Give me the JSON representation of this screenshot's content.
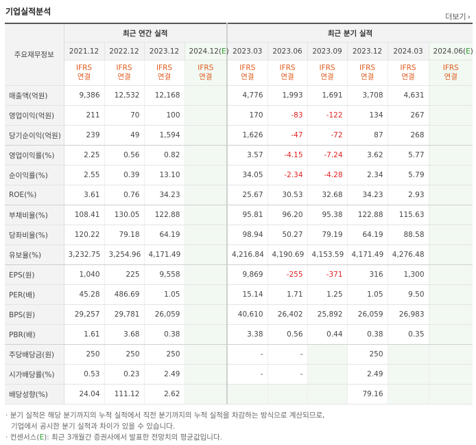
{
  "title": "기업실적분석",
  "more": "더보기",
  "more_arrow": "›",
  "header": {
    "label": "주요재무정보",
    "annual_group": "최근 연간 실적",
    "quarter_group": "최근 분기 실적",
    "periods": [
      "2021.12",
      "2022.12",
      "2023.12",
      "2024.12(E)",
      "2023.03",
      "2023.06",
      "2023.09",
      "2023.12",
      "2024.03",
      "2024.06(E)"
    ],
    "ifrs_top": "IFRS",
    "ifrs_bottom": "연결"
  },
  "rows": [
    {
      "label": "매출액(억원)",
      "v": [
        "9,386",
        "12,532",
        "12,168",
        "",
        "4,776",
        "1,993",
        "1,691",
        "3,708",
        "4,631",
        ""
      ]
    },
    {
      "label": "영업이익(억원)",
      "v": [
        "211",
        "70",
        "100",
        "",
        "170",
        "-83",
        "-122",
        "134",
        "267",
        ""
      ]
    },
    {
      "label": "당기순이익(억원)",
      "v": [
        "239",
        "49",
        "1,594",
        "",
        "1,626",
        "-47",
        "-72",
        "87",
        "268",
        ""
      ]
    },
    {
      "label": "영업이익률(%)",
      "v": [
        "2.25",
        "0.56",
        "0.82",
        "",
        "3.57",
        "-4.15",
        "-7.24",
        "3.62",
        "5.77",
        ""
      ]
    },
    {
      "label": "순이익률(%)",
      "v": [
        "2.55",
        "0.39",
        "13.10",
        "",
        "34.05",
        "-2.34",
        "-4.28",
        "2.34",
        "5.79",
        ""
      ]
    },
    {
      "label": "ROE(%)",
      "v": [
        "3.61",
        "0.76",
        "34.23",
        "",
        "25.67",
        "30.53",
        "32.68",
        "34.23",
        "2.93",
        ""
      ]
    },
    {
      "label": "부채비율(%)",
      "v": [
        "108.41",
        "130.05",
        "122.88",
        "",
        "95.81",
        "96.20",
        "95.38",
        "122.88",
        "115.63",
        ""
      ]
    },
    {
      "label": "당좌비율(%)",
      "v": [
        "120.22",
        "79.18",
        "64.19",
        "",
        "98.94",
        "50.27",
        "79.19",
        "64.19",
        "88.58",
        ""
      ]
    },
    {
      "label": "유보율(%)",
      "v": [
        "3,232.75",
        "3,254.96",
        "4,171.49",
        "",
        "4,216.84",
        "4,190.69",
        "4,153.59",
        "4,171.49",
        "4,276.48",
        ""
      ]
    },
    {
      "label": "EPS(원)",
      "v": [
        "1,040",
        "225",
        "9,558",
        "",
        "9,869",
        "-255",
        "-371",
        "316",
        "1,300",
        ""
      ]
    },
    {
      "label": "PER(배)",
      "v": [
        "45.28",
        "486.69",
        "1.05",
        "",
        "15.14",
        "1.71",
        "1.25",
        "1.05",
        "9.50",
        ""
      ]
    },
    {
      "label": "BPS(원)",
      "v": [
        "29,257",
        "29,781",
        "26,059",
        "",
        "40,610",
        "26,402",
        "25,892",
        "26,059",
        "26,983",
        ""
      ]
    },
    {
      "label": "PBR(배)",
      "v": [
        "1.61",
        "3.68",
        "0.38",
        "",
        "3.38",
        "0.56",
        "0.44",
        "0.38",
        "0.35",
        ""
      ]
    },
    {
      "label": "주당배당금(원)",
      "v": [
        "250",
        "250",
        "250",
        "",
        "-",
        "-",
        "",
        "250",
        "",
        ""
      ]
    },
    {
      "label": "시가배당률(%)",
      "v": [
        "0.53",
        "0.23",
        "2.49",
        "",
        "-",
        "-",
        "",
        "2.49",
        "",
        ""
      ]
    },
    {
      "label": "배당성향(%)",
      "v": [
        "24.04",
        "111.12",
        "2.62",
        "",
        "",
        "",
        "",
        "79.16",
        "",
        ""
      ]
    }
  ],
  "notes": {
    "line1": "분기 실적은 해당 분기까지의 누적 실적에서 직전 분기까지의 누적 실적을 차감하는 방식으로 계산되므로,",
    "line2": "기업에서 공시한 분기 실적과 차이가 있을 수 있습니다.",
    "line3_prefix": "컨센서스(",
    "line3_e": "E",
    "line3_suffix": "): 최근 3개월간 증권사에서 발표한 전망치의 평균값입니다.",
    "bullet": "·"
  }
}
